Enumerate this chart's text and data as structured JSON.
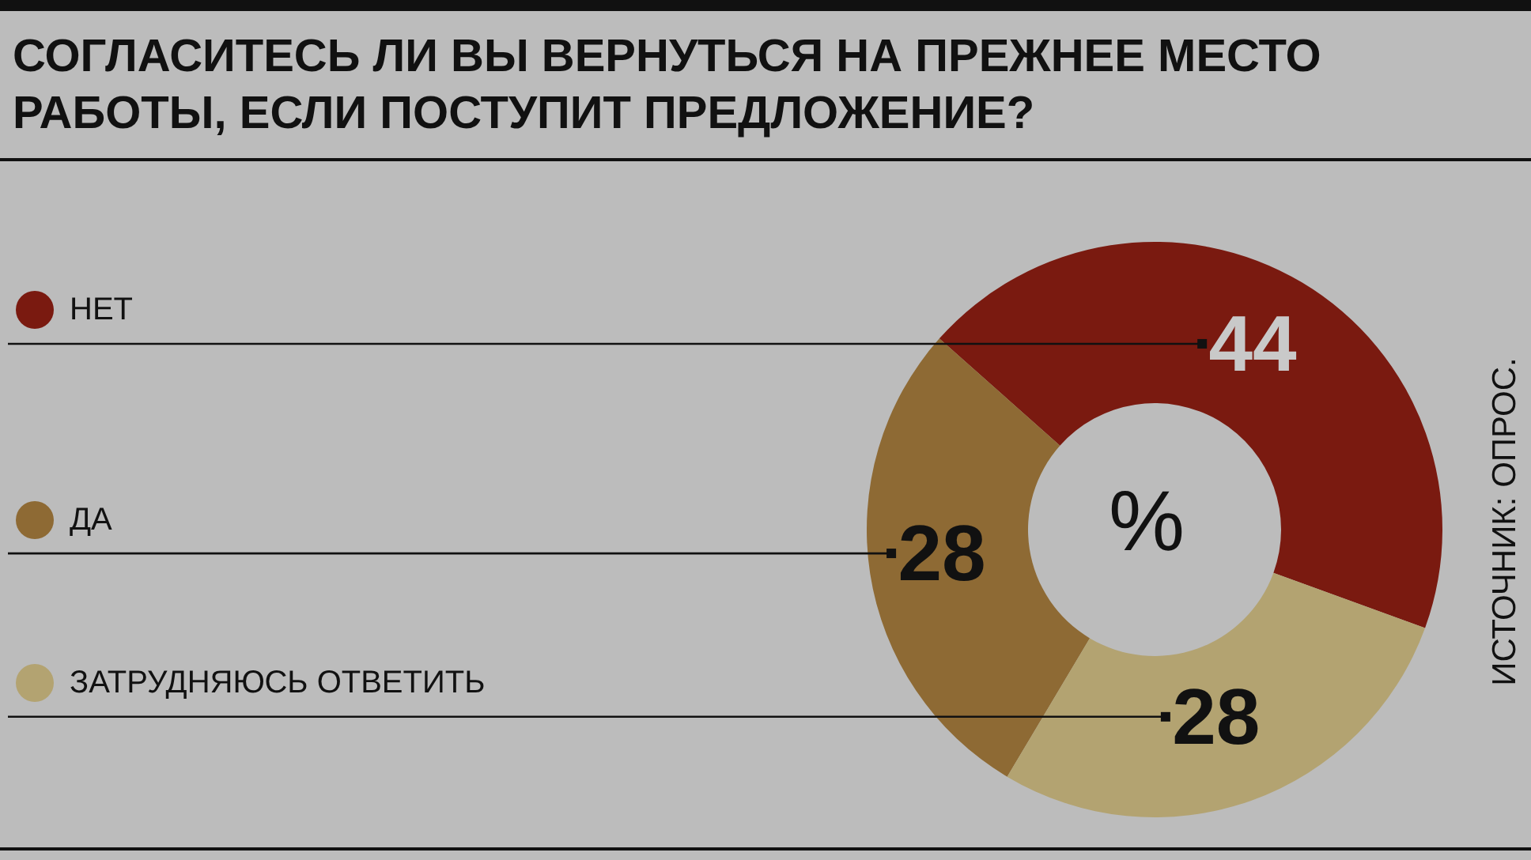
{
  "chart_data": {
    "type": "donut",
    "title": "СОГЛАСИТЕСЬ ЛИ ВЫ ВЕРНУТЬСЯ НА ПРЕЖНЕЕ МЕСТО РАБОТЫ, ЕСЛИ ПОСТУПИТ ПРЕДЛОЖЕНИЕ?",
    "categories": [
      "НЕТ",
      "ДА",
      "ЗАТРУДНЯЮСЬ ОТВЕТИТЬ"
    ],
    "values": [
      44,
      28,
      28
    ],
    "colors": [
      "#7a1a10",
      "#8e6a34",
      "#b3a371"
    ],
    "data_labels": true,
    "legend": "left",
    "annotations": [
      "%",
      "ИСТОЧНИК: ОПРОС."
    ]
  }
}
